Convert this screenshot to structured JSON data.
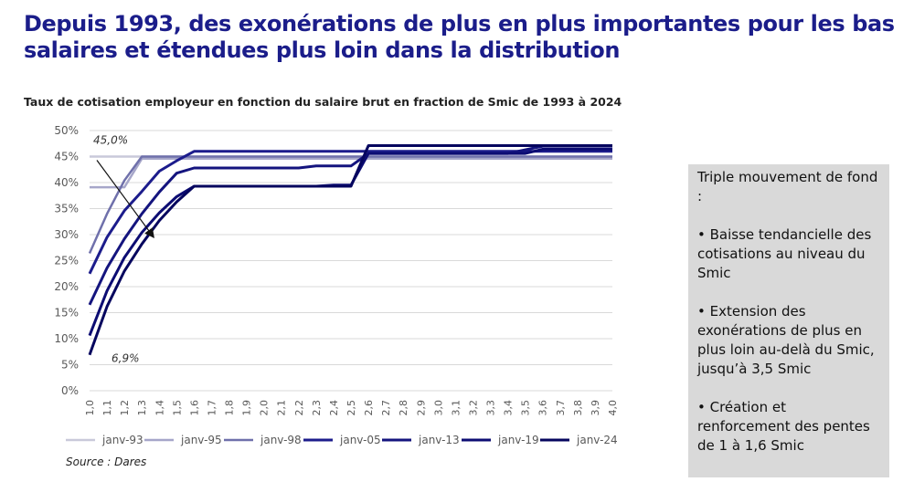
{
  "title": "Depuis 1993, des exonérations de plus en plus importantes pour les bas salaires et étendues plus loin dans la distribution",
  "source": "Source : Dares",
  "side_box": {
    "paragraphs": [
      "Triple mouvement de fond :",
      "• Baisse tendancielle des cotisations au niveau du Smic",
      "• Extension des exonérations de plus en plus loin au-delà du Smic, jusqu’à 3,5 Smic",
      "• Création et renforcement des pentes de 1 à 1,6 Smic"
    ]
  },
  "chart_data": {
    "type": "line",
    "title": "Taux de cotisation employeur en fonction du salaire brut en fraction de Smic de 1993 à 2024",
    "xlabel": "",
    "ylabel": "",
    "x": [
      1.0,
      1.1,
      1.2,
      1.3,
      1.4,
      1.5,
      1.6,
      1.7,
      1.8,
      1.9,
      2.0,
      2.1,
      2.2,
      2.3,
      2.4,
      2.5,
      2.6,
      2.7,
      2.8,
      2.9,
      3.0,
      3.1,
      3.2,
      3.3,
      3.4,
      3.5,
      3.6,
      3.7,
      3.8,
      3.9,
      4.0
    ],
    "x_tick_labels": [
      "1,0",
      "1,1",
      "1,2",
      "1,3",
      "1,4",
      "1,5",
      "1,6",
      "1,7",
      "1,8",
      "1,9",
      "2,0",
      "2,1",
      "2,2",
      "2,3",
      "2,4",
      "2,5",
      "2,6",
      "2,7",
      "2,8",
      "2,9",
      "3,0",
      "3,1",
      "3,2",
      "3,3",
      "3,4",
      "3,5",
      "3,6",
      "3,7",
      "3,8",
      "3,9",
      "4,0"
    ],
    "ylim": [
      0,
      50
    ],
    "y_ticks": [
      0,
      5,
      10,
      15,
      20,
      25,
      30,
      35,
      40,
      45,
      50
    ],
    "y_tick_labels": [
      "0%",
      "5%",
      "10%",
      "15%",
      "20%",
      "25%",
      "30%",
      "35%",
      "40%",
      "45%",
      "50%"
    ],
    "grid": "horizontal",
    "legend_position": "bottom",
    "series": [
      {
        "name": "janv-93",
        "color": "#c9c9da",
        "values": [
          45,
          45,
          45,
          45,
          45,
          45,
          45,
          45,
          45,
          45,
          45,
          45,
          45,
          45,
          45,
          45,
          45,
          45,
          45,
          45,
          45,
          45,
          45,
          45,
          45,
          45,
          45,
          45,
          45,
          45,
          45
        ]
      },
      {
        "name": "janv-95",
        "color": "#a6a6c9",
        "values": [
          39.1,
          39.1,
          39.1,
          44.6,
          44.6,
          44.6,
          44.6,
          44.6,
          44.6,
          44.6,
          44.6,
          44.6,
          44.6,
          44.6,
          44.6,
          44.6,
          44.6,
          44.6,
          44.6,
          44.6,
          44.6,
          44.6,
          44.6,
          44.6,
          44.6,
          44.6,
          44.6,
          44.6,
          44.6,
          44.6,
          44.6
        ]
      },
      {
        "name": "janv-98",
        "color": "#6f70ab",
        "values": [
          26.4,
          34.0,
          40.4,
          45.0,
          45.0,
          45.0,
          45.0,
          45.0,
          45.0,
          45.0,
          45.0,
          45.0,
          45.0,
          45.0,
          45.0,
          45.0,
          45.0,
          45.0,
          45.0,
          45.0,
          45.0,
          45.0,
          45.0,
          45.0,
          45.0,
          45.0,
          45.0,
          45.0,
          45.0,
          45.0,
          45.0
        ]
      },
      {
        "name": "janv-05",
        "color": "#1c1c8c",
        "values": [
          22.5,
          29.5,
          34.6,
          38.3,
          42.2,
          44.2,
          46.0,
          46.0,
          46.0,
          46.0,
          46.0,
          46.0,
          46.0,
          46.0,
          46.0,
          46.0,
          46.0,
          46.0,
          46.0,
          46.0,
          46.0,
          46.0,
          46.0,
          46.0,
          46.0,
          46.0,
          46.0,
          46.0,
          46.0,
          46.0,
          46.0
        ]
      },
      {
        "name": "janv-13",
        "color": "#14147e",
        "values": [
          16.5,
          23.6,
          29.2,
          34.0,
          38.2,
          41.8,
          42.8,
          42.8,
          42.8,
          42.8,
          42.8,
          42.8,
          42.8,
          43.2,
          43.2,
          43.2,
          45.6,
          45.6,
          45.6,
          45.6,
          45.6,
          45.6,
          45.6,
          45.6,
          45.6,
          46.3,
          47.0,
          47.0,
          47.0,
          47.0,
          47.0
        ]
      },
      {
        "name": "janv-19",
        "color": "#0c0c73",
        "values": [
          10.6,
          19.2,
          25.6,
          30.4,
          34.2,
          37.3,
          39.3,
          39.3,
          39.3,
          39.3,
          39.3,
          39.3,
          39.3,
          39.3,
          39.5,
          39.5,
          45.6,
          45.6,
          45.6,
          45.6,
          45.6,
          45.6,
          45.6,
          45.6,
          45.6,
          45.6,
          46.4,
          46.4,
          46.4,
          46.4,
          46.4
        ]
      },
      {
        "name": "janv-24",
        "color": "#05055e",
        "values": [
          6.9,
          16.2,
          23.0,
          28.2,
          32.7,
          36.3,
          39.3,
          39.3,
          39.3,
          39.3,
          39.3,
          39.3,
          39.3,
          39.3,
          39.3,
          39.3,
          47.1,
          47.1,
          47.1,
          47.1,
          47.1,
          47.1,
          47.1,
          47.1,
          47.1,
          47.1,
          47.1,
          47.1,
          47.1,
          47.1,
          47.1
        ]
      }
    ],
    "annotations": [
      {
        "text": "45,0%",
        "x": 1.0,
        "y": 45.0
      },
      {
        "text": "6,9%",
        "x": 1.0,
        "y": 6.9
      }
    ],
    "arrow": {
      "from": {
        "x": 1.0,
        "y": 45.0
      },
      "to": {
        "x": 1.4,
        "y": 30.5
      }
    }
  }
}
